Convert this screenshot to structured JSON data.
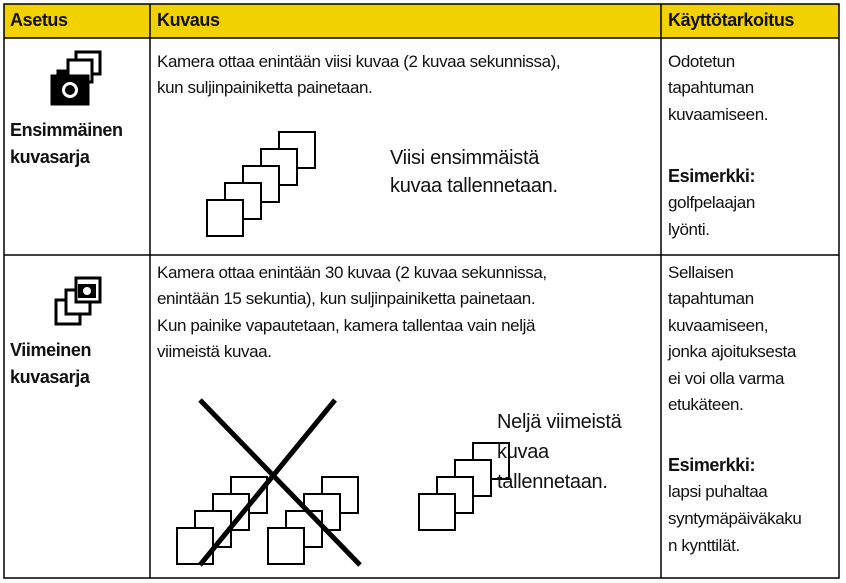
{
  "header": {
    "setting": "Asetus",
    "description": "Kuvaus",
    "purpose": "Käyttötarkoitus"
  },
  "rows": [
    {
      "setting": [
        "Ensimmäinen",
        "kuvasarja"
      ],
      "description": [
        "Kamera ottaa enintään viisi kuvaa (2 kuvaa sekunnissa),",
        "kun suljinpainiketta painetaan."
      ],
      "caption": [
        "Viisi ensimmäistä",
        "kuvaa tallennetaan."
      ],
      "purpose": [
        "Odotetun",
        "tapahtuman",
        "kuvaamiseen."
      ],
      "example_label": "Esimerkki:",
      "example": [
        "golfpelaajan",
        "lyönti."
      ]
    },
    {
      "setting": [
        "Viimeinen",
        "kuvasarja"
      ],
      "description": [
        "Kamera ottaa enintään 30 kuvaa (2 kuvaa sekunnissa,",
        "enintään 15 sekuntia), kun suljinpainiketta painetaan.",
        "Kun painike vapautetaan, kamera tallentaa vain neljä",
        "viimeistä kuvaa."
      ],
      "caption": [
        "Neljä viimeistä",
        "kuvaa",
        "tallennetaan."
      ],
      "purpose": [
        "Sellaisen",
        "tapahtuman",
        "kuvaamiseen,",
        "jonka ajoituksesta",
        "ei voi olla varma",
        "etukäteen."
      ],
      "example_label": "Esimerkki:",
      "example": [
        "lapsi puhaltaa",
        "syntymäpäiväkaku",
        "n kynttilät."
      ]
    }
  ]
}
